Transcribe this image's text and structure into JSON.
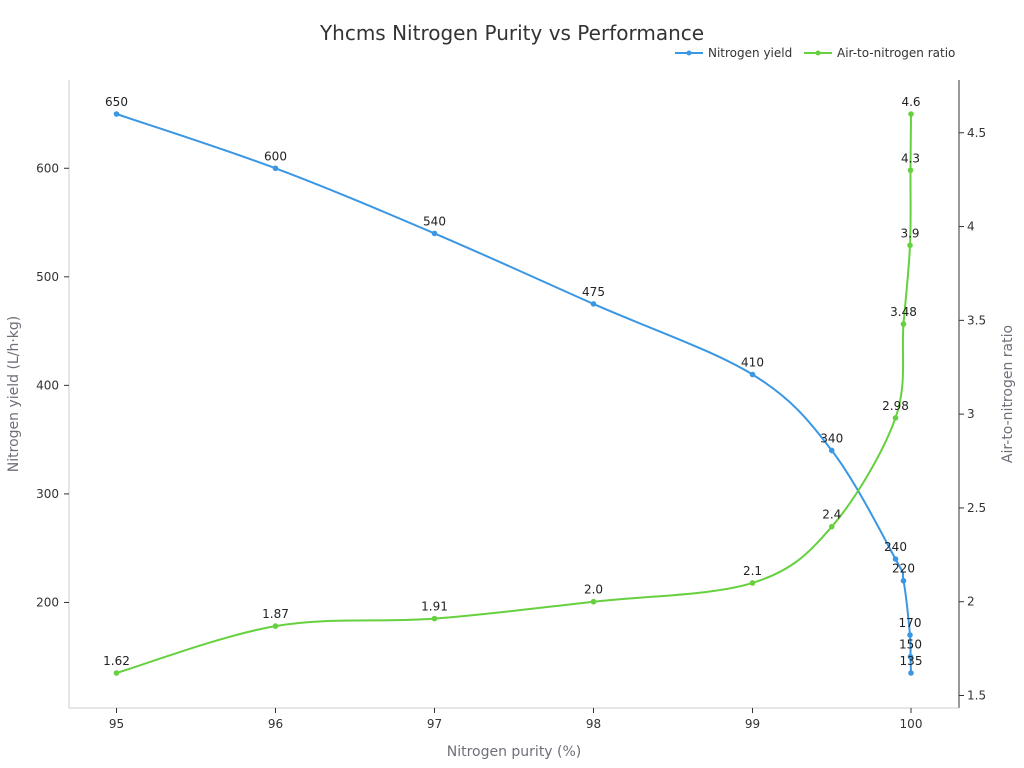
{
  "chart_data": {
    "type": "line",
    "title": "Yhcms Nitrogen Purity vs Performance",
    "xlabel": "Nitrogen purity (%)",
    "ylabel_left": "Nitrogen yield (L/h·kg)",
    "ylabel_right": "Air-to-nitrogen ratio",
    "xlim": [
      94.7,
      100.3
    ],
    "ylim_left": [
      105,
      680
    ],
    "ylim_right": [
      1.47,
      4.77
    ],
    "x_ticks": [
      95,
      96,
      97,
      98,
      99,
      100
    ],
    "y_ticks_left": [
      200,
      300,
      400,
      500,
      600
    ],
    "y_ticks_right": [
      1.5,
      2,
      2.5,
      3,
      3.5,
      4,
      4.5
    ],
    "legend_position": "top-right",
    "grid": false,
    "series": [
      {
        "name": "Nitrogen yield",
        "axis": "left",
        "color": "#3a97e4",
        "x": [
          95,
          96,
          97,
          98,
          99,
          99.5,
          99.9,
          99.95,
          99.99,
          99.995,
          99.999
        ],
        "values": [
          650,
          600,
          540,
          475,
          410,
          340,
          240,
          220,
          170,
          150,
          135
        ],
        "labels": [
          "650",
          "600",
          "540",
          "475",
          "410",
          "340",
          "240",
          "220",
          "170",
          "150",
          "135"
        ]
      },
      {
        "name": "Air-to-nitrogen ratio",
        "axis": "right",
        "color": "#66d13f",
        "x": [
          95,
          96,
          97,
          98,
          99,
          99.5,
          99.9,
          99.95,
          99.99,
          99.995,
          99.999
        ],
        "values": [
          1.62,
          1.87,
          1.91,
          2.0,
          2.1,
          2.4,
          2.98,
          3.48,
          3.9,
          4.3,
          4.6
        ],
        "labels": [
          "1.62",
          "1.87",
          "1.91",
          "2.0",
          "2.1",
          "2.4",
          "2.98",
          "3.48",
          "3.9",
          "4.3",
          "4.6"
        ]
      }
    ]
  }
}
